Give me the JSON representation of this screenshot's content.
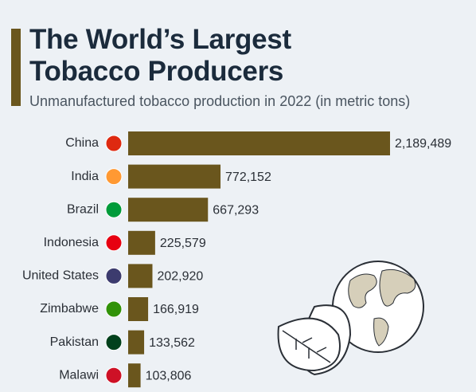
{
  "chart_data": {
    "type": "bar",
    "orientation": "horizontal",
    "title": "The World’s Largest Tobacco Producers",
    "subtitle": "Unmanufactured tobacco production in 2022 (in metric tons)",
    "categories": [
      "China",
      "India",
      "Brazil",
      "Indonesia",
      "United States",
      "Zimbabwe",
      "Pakistan",
      "Malawi"
    ],
    "values": [
      2189489,
      772152,
      667293,
      225579,
      202920,
      166919,
      133562,
      103806
    ],
    "value_labels": [
      "2,189,489",
      "772,152",
      "667,293",
      "225,579",
      "202,920",
      "166,919",
      "133,562",
      "103,806"
    ],
    "color": "#6a561d"
  }
}
